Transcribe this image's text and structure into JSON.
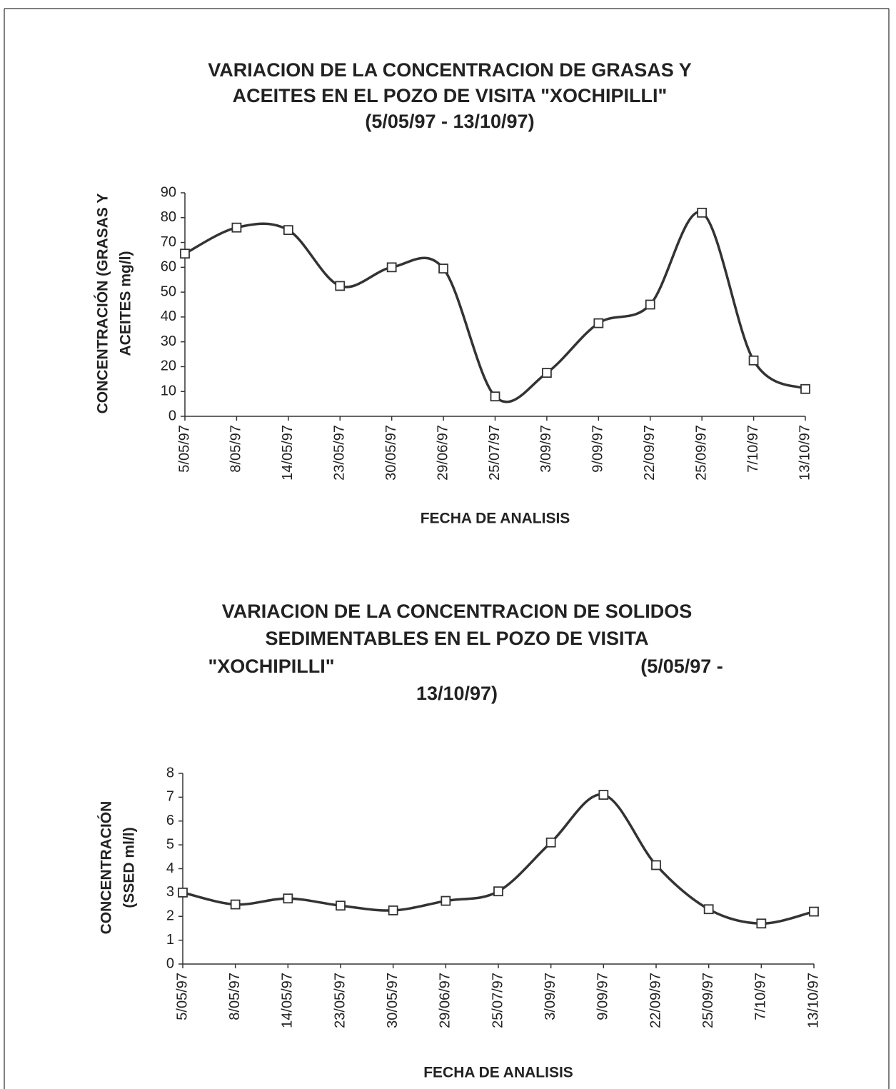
{
  "chart_data": [
    {
      "type": "line",
      "title": [
        "VARIACION DE LA CONCENTRACION DE GRASAS Y",
        "ACEITES EN EL POZO DE VISITA \"XOCHIPILLI\"",
        "(5/05/97 - 13/10/97)"
      ],
      "ylabel": [
        "CONCENTRACIÓN  (GRASAS Y",
        "ACEITES mg/l)"
      ],
      "xlabel": "FECHA DE ANALISIS",
      "categories": [
        "5/05/97",
        "8/05/97",
        "14/05/97",
        "23/05/97",
        "30/05/97",
        "29/06/97",
        "25/07/97",
        "3/09/97",
        "9/09/97",
        "22/09/97",
        "25/09/97",
        "7/10/97",
        "13/10/97"
      ],
      "values": [
        65.5,
        76,
        75,
        52.5,
        60,
        59.5,
        8,
        17.5,
        37.5,
        45,
        82,
        22.5,
        11
      ],
      "color": "#333333",
      "ylim": [
        0,
        90
      ],
      "yticks": [
        0,
        10,
        20,
        30,
        40,
        50,
        60,
        70,
        80,
        90
      ]
    },
    {
      "type": "line",
      "title": [
        "VARIACION DE LA CONCENTRACION DE SOLIDOS",
        "SEDIMENTABLES EN EL POZO DE VISITA",
        "\"XOCHIPILLI\"",
        "(5/05/97 -",
        "13/10/97)"
      ],
      "ylabel": [
        "CONCENTRACIÓN",
        "(SSED ml/l)"
      ],
      "xlabel": "FECHA DE ANALISIS",
      "categories": [
        "5/05/97",
        "8/05/97",
        "14/05/97",
        "23/05/97",
        "30/05/97",
        "29/06/97",
        "25/07/97",
        "3/09/97",
        "9/09/97",
        "22/09/97",
        "25/09/97",
        "7/10/97",
        "13/10/97"
      ],
      "values": [
        3.0,
        2.5,
        2.75,
        2.45,
        2.25,
        2.65,
        3.05,
        5.1,
        7.1,
        4.15,
        2.3,
        1.7,
        2.2
      ],
      "color": "#333333",
      "ylim": [
        0,
        8
      ],
      "yticks": [
        0,
        1,
        2,
        3,
        4,
        5,
        6,
        7,
        8
      ]
    }
  ]
}
